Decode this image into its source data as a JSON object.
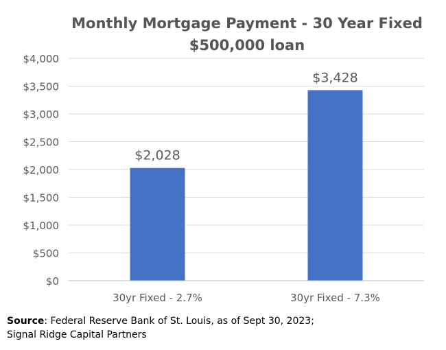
{
  "chart_data": {
    "type": "bar",
    "title": "Monthly Mortgage Payment - 30 Year Fixed",
    "subtitle": "$500,000 loan",
    "categories": [
      "30yr Fixed - 2.7%",
      "30yr Fixed - 7.3%"
    ],
    "values": [
      2028,
      3428
    ],
    "value_labels": [
      "$2,028",
      "$3,428"
    ],
    "ylim": [
      0,
      4000
    ],
    "yticks": [
      0,
      500,
      1000,
      1500,
      2000,
      2500,
      3000,
      3500,
      4000
    ],
    "ytick_labels": [
      "$0",
      "$500",
      "$1,000",
      "$1,500",
      "$2,000",
      "$2,500",
      "$3,000",
      "$3,500",
      "$4,000"
    ],
    "grid": true,
    "bar_color": "#4472C4",
    "grid_color": "#D9D9D9",
    "text_color": "#595959"
  },
  "source": {
    "label": "Source",
    "text": ": Federal Reserve Bank of St. Louis, as of Sept 30, 2023;",
    "line2": "Signal Ridge Capital Partners"
  }
}
